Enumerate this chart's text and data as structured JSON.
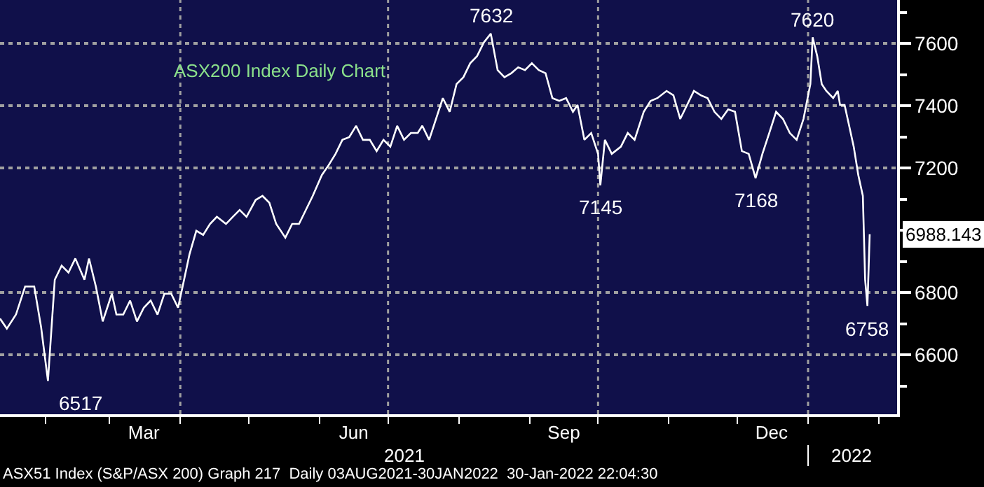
{
  "chart_data": {
    "type": "line",
    "title": "ASX200 Index Daily Chart",
    "x": [
      "2021-01-12",
      "2021-01-15",
      "2021-01-19",
      "2021-01-23",
      "2021-01-27",
      "2021-01-30",
      "2021-02-02",
      "2021-02-05",
      "2021-02-08",
      "2021-02-11",
      "2021-02-14",
      "2021-02-18",
      "2021-02-20",
      "2021-02-23",
      "2021-02-26",
      "2021-03-02",
      "2021-03-04",
      "2021-03-07",
      "2021-03-10",
      "2021-03-13",
      "2021-03-16",
      "2021-03-19",
      "2021-03-22",
      "2021-03-25",
      "2021-03-28",
      "2021-03-31",
      "2021-04-02",
      "2021-04-05",
      "2021-04-08",
      "2021-04-11",
      "2021-04-14",
      "2021-04-17",
      "2021-04-21",
      "2021-04-24",
      "2021-04-27",
      "2021-04-30",
      "2021-05-04",
      "2021-05-07",
      "2021-05-10",
      "2021-05-13",
      "2021-05-17",
      "2021-05-20",
      "2021-05-23",
      "2021-05-26",
      "2021-05-29",
      "2021-06-02",
      "2021-06-05",
      "2021-06-08",
      "2021-06-11",
      "2021-06-14",
      "2021-06-17",
      "2021-06-20",
      "2021-06-23",
      "2021-06-26",
      "2021-06-29",
      "2021-07-02",
      "2021-07-05",
      "2021-07-08",
      "2021-07-11",
      "2021-07-14",
      "2021-07-16",
      "2021-07-19",
      "2021-07-22",
      "2021-07-25",
      "2021-07-28",
      "2021-07-31",
      "2021-08-03",
      "2021-08-06",
      "2021-08-09",
      "2021-08-12",
      "2021-08-15",
      "2021-08-18",
      "2021-08-21",
      "2021-08-24",
      "2021-08-27",
      "2021-08-30",
      "2021-09-02",
      "2021-09-05",
      "2021-09-08",
      "2021-09-11",
      "2021-09-14",
      "2021-09-17",
      "2021-09-20",
      "2021-09-22",
      "2021-09-25",
      "2021-09-28",
      "2021-10-01",
      "2021-10-02",
      "2021-10-04",
      "2021-10-07",
      "2021-10-11",
      "2021-10-14",
      "2021-10-17",
      "2021-10-21",
      "2021-10-24",
      "2021-10-27",
      "2021-10-31",
      "2021-11-03",
      "2021-11-06",
      "2021-11-09",
      "2021-11-12",
      "2021-11-15",
      "2021-11-18",
      "2021-11-21",
      "2021-11-24",
      "2021-11-27",
      "2021-11-30",
      "2021-12-03",
      "2021-12-06",
      "2021-12-09",
      "2021-12-12",
      "2021-12-15",
      "2021-12-18",
      "2021-12-21",
      "2021-12-24",
      "2021-12-27",
      "2021-12-30",
      "2022-01-02",
      "2022-01-03",
      "2022-01-05",
      "2022-01-07",
      "2022-01-09",
      "2022-01-12",
      "2022-01-14",
      "2022-01-15",
      "2022-01-17",
      "2022-01-19",
      "2022-01-21",
      "2022-01-23",
      "2022-01-25",
      "2022-01-26",
      "2022-01-27",
      "2022-01-28"
    ],
    "series": [
      {
        "color": "#ffffff",
        "values": [
          6717,
          6685,
          6730,
          6820,
          6820,
          6690,
          6517,
          6842,
          6887,
          6865,
          6910,
          6842,
          6910,
          6820,
          6708,
          6797,
          6730,
          6730,
          6775,
          6708,
          6752,
          6775,
          6730,
          6797,
          6797,
          6752,
          6820,
          6923,
          6999,
          6986,
          7021,
          7044,
          7021,
          7044,
          7066,
          7044,
          7098,
          7111,
          7089,
          7021,
          6977,
          7021,
          7021,
          7066,
          7111,
          7178,
          7210,
          7246,
          7291,
          7300,
          7336,
          7291,
          7291,
          7255,
          7291,
          7269,
          7336,
          7291,
          7313,
          7313,
          7336,
          7291,
          7358,
          7425,
          7381,
          7470,
          7492,
          7537,
          7560,
          7604,
          7632,
          7515,
          7492,
          7505,
          7524,
          7515,
          7537,
          7515,
          7505,
          7425,
          7416,
          7425,
          7381,
          7403,
          7291,
          7313,
          7246,
          7145,
          7291,
          7246,
          7269,
          7313,
          7291,
          7381,
          7416,
          7425,
          7448,
          7434,
          7358,
          7403,
          7448,
          7434,
          7425,
          7381,
          7358,
          7389,
          7381,
          7255,
          7246,
          7168,
          7246,
          7313,
          7381,
          7358,
          7313,
          7291,
          7358,
          7470,
          7620,
          7560,
          7470,
          7448,
          7425,
          7448,
          7403,
          7403,
          7336,
          7269,
          7178,
          7111,
          6842,
          6758,
          6988
        ]
      }
    ],
    "xlim": [
      "2021-01-12",
      "2022-02-09"
    ],
    "xticks": [
      {
        "value": "2021-02-01",
        "label": null
      },
      {
        "value": "2021-03-01",
        "label": null
      },
      {
        "value": "2021-03-16",
        "label": "Mar"
      },
      {
        "value": "2021-04-01",
        "label": null
      },
      {
        "value": "2021-05-01",
        "label": null
      },
      {
        "value": "2021-06-01",
        "label": null
      },
      {
        "value": "2021-06-16",
        "label": "Jun"
      },
      {
        "value": "2021-07-01",
        "label": null
      },
      {
        "value": "2021-08-01",
        "label": null
      },
      {
        "value": "2021-09-01",
        "label": null
      },
      {
        "value": "2021-09-16",
        "label": "Sep"
      },
      {
        "value": "2021-10-01",
        "label": null
      },
      {
        "value": "2021-11-01",
        "label": null
      },
      {
        "value": "2021-12-01",
        "label": null
      },
      {
        "value": "2021-12-16",
        "label": "Dec"
      },
      {
        "value": "2022-01-01",
        "label": null
      },
      {
        "value": "2022-02-01",
        "label": null
      }
    ],
    "ylim": [
      6410,
      7740
    ],
    "yticks": [
      {
        "value": 6500,
        "label": null
      },
      6600,
      {
        "value": 6700,
        "label": null
      },
      6800,
      {
        "value": 6900,
        "label": null
      },
      {
        "value": 7000,
        "label": null
      },
      {
        "value": 7100,
        "label": null
      },
      7200,
      {
        "value": 7300,
        "label": null
      },
      7400,
      {
        "value": 7500,
        "label": null
      },
      7600,
      {
        "value": 7700,
        "label": null
      }
    ],
    "grid": "y",
    "ref_lines": [
      {
        "axis": "x",
        "value": "2021-04-01",
        "line_style": "dotted",
        "color": "#a0a0a0"
      },
      {
        "axis": "x",
        "value": "2021-07-01",
        "line_style": "dotted",
        "color": "#a0a0a0"
      },
      {
        "axis": "x",
        "value": "2021-10-01",
        "line_style": "dotted",
        "color": "#a0a0a0"
      },
      {
        "axis": "x",
        "value": "2022-01-01",
        "line_style": "dotted",
        "color": "#a0a0a0"
      }
    ],
    "annotations": [
      {
        "text": "7632",
        "x": "2021-08-15",
        "y": 7632
      },
      {
        "text": "7620",
        "x": "2022-01-03",
        "y": 7620
      },
      {
        "text": "7145",
        "x": "2021-10-02",
        "y": 7145
      },
      {
        "text": "7168",
        "x": "2021-12-09",
        "y": 7168
      },
      {
        "text": "6517",
        "x": "2021-02-02",
        "y": 6517
      },
      {
        "text": "6758",
        "x": "2022-01-27",
        "y": 6758
      },
      {
        "text": "6988.143",
        "x": "2022-01-28",
        "y": 6988.143
      },
      "2021",
      "2022",
      "ASX51 Index (S&P/ASX 200) Graph 217  Daily 03AUG2021-30JAN2022  30-Jan-2022 22:04:30"
    ],
    "marker": "none",
    "line_style": "solid"
  }
}
